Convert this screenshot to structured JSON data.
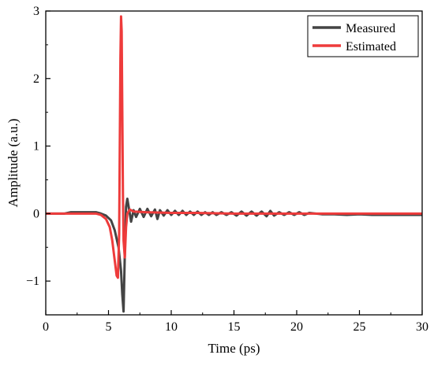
{
  "chart_data": {
    "type": "line",
    "xlabel": "Time (ps)",
    "ylabel": "Amplitude (a.u.)",
    "xlim": [
      0,
      30
    ],
    "ylim": [
      -1.5,
      3
    ],
    "xticks": [
      0,
      5,
      10,
      15,
      20,
      25,
      30
    ],
    "yticks": [
      -1,
      0,
      1,
      2,
      3
    ],
    "ytick_labels": [
      "−1",
      "0",
      "1",
      "2",
      "3"
    ],
    "grid": false,
    "legend": {
      "position": "top-right"
    },
    "series": [
      {
        "name": "Measured",
        "color": "#444444",
        "points": [
          [
            0,
            0.0
          ],
          [
            1.5,
            0.0
          ],
          [
            2,
            0.02
          ],
          [
            3,
            0.02
          ],
          [
            4,
            0.02
          ],
          [
            4.4,
            0.0
          ],
          [
            4.8,
            -0.03
          ],
          [
            5.2,
            -0.1
          ],
          [
            5.5,
            -0.25
          ],
          [
            5.8,
            -0.5
          ],
          [
            6.0,
            -0.85
          ],
          [
            6.1,
            -1.2
          ],
          [
            6.2,
            -1.45
          ],
          [
            6.3,
            -0.6
          ],
          [
            6.4,
            0.1
          ],
          [
            6.5,
            0.22
          ],
          [
            6.65,
            0.05
          ],
          [
            6.8,
            -0.12
          ],
          [
            7.0,
            0.05
          ],
          [
            7.2,
            -0.05
          ],
          [
            7.5,
            0.07
          ],
          [
            7.8,
            -0.05
          ],
          [
            8.1,
            0.07
          ],
          [
            8.4,
            -0.04
          ],
          [
            8.7,
            0.06
          ],
          [
            8.9,
            -0.08
          ],
          [
            9.1,
            0.05
          ],
          [
            9.4,
            -0.03
          ],
          [
            9.7,
            0.05
          ],
          [
            10.0,
            -0.02
          ],
          [
            10.3,
            0.04
          ],
          [
            10.6,
            -0.02
          ],
          [
            10.9,
            0.04
          ],
          [
            11.2,
            -0.02
          ],
          [
            11.5,
            0.03
          ],
          [
            11.8,
            -0.02
          ],
          [
            12.1,
            0.03
          ],
          [
            12.4,
            -0.02
          ],
          [
            12.7,
            0.02
          ],
          [
            13.0,
            -0.02
          ],
          [
            13.3,
            0.02
          ],
          [
            13.6,
            -0.02
          ],
          [
            14.0,
            0.02
          ],
          [
            14.4,
            -0.02
          ],
          [
            14.8,
            0.02
          ],
          [
            15.2,
            -0.03
          ],
          [
            15.6,
            0.03
          ],
          [
            16.0,
            -0.03
          ],
          [
            16.4,
            0.03
          ],
          [
            16.8,
            -0.03
          ],
          [
            17.2,
            0.03
          ],
          [
            17.6,
            -0.04
          ],
          [
            17.9,
            0.04
          ],
          [
            18.2,
            -0.03
          ],
          [
            18.6,
            0.02
          ],
          [
            19.0,
            -0.02
          ],
          [
            19.4,
            0.02
          ],
          [
            19.8,
            -0.02
          ],
          [
            20.2,
            0.02
          ],
          [
            20.6,
            -0.02
          ],
          [
            21.0,
            0.01
          ],
          [
            22.0,
            -0.01
          ],
          [
            23.0,
            -0.01
          ],
          [
            24.0,
            -0.02
          ],
          [
            25.0,
            -0.01
          ],
          [
            26.0,
            -0.02
          ],
          [
            27.0,
            -0.02
          ],
          [
            28.0,
            -0.02
          ],
          [
            29.0,
            -0.02
          ],
          [
            30.0,
            -0.02
          ]
        ]
      },
      {
        "name": "Estimated",
        "color": "#ee3b3b",
        "points": [
          [
            0,
            0.0
          ],
          [
            4.0,
            0.0
          ],
          [
            4.4,
            -0.02
          ],
          [
            4.8,
            -0.08
          ],
          [
            5.1,
            -0.2
          ],
          [
            5.3,
            -0.4
          ],
          [
            5.5,
            -0.7
          ],
          [
            5.65,
            -0.92
          ],
          [
            5.75,
            -0.95
          ],
          [
            5.85,
            -0.3
          ],
          [
            5.9,
            1.0
          ],
          [
            5.95,
            2.3
          ],
          [
            6.0,
            2.92
          ],
          [
            6.05,
            2.7
          ],
          [
            6.1,
            1.5
          ],
          [
            6.15,
            0.3
          ],
          [
            6.2,
            -0.4
          ],
          [
            6.3,
            -0.65
          ],
          [
            6.4,
            -0.2
          ],
          [
            6.5,
            0.0
          ],
          [
            6.7,
            0.06
          ],
          [
            7.0,
            0.03
          ],
          [
            8.0,
            0.02
          ],
          [
            10.0,
            0.01
          ],
          [
            12.0,
            0.01
          ],
          [
            15.0,
            0.0
          ],
          [
            20.0,
            0.0
          ],
          [
            25.0,
            0.0
          ],
          [
            30.0,
            0.0
          ]
        ]
      }
    ]
  }
}
